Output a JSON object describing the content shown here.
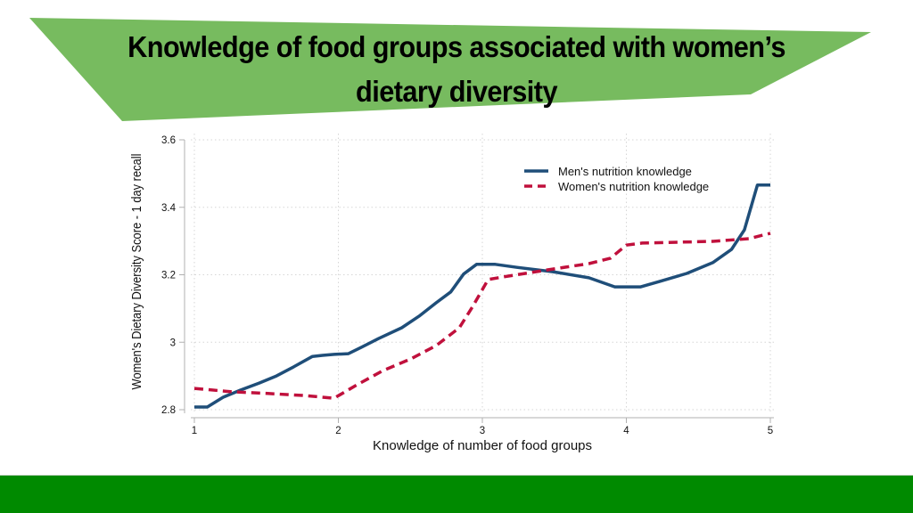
{
  "slide": {
    "title_line1": "Knowledge of food groups associated with women’s",
    "title_line2": "dietary diversity",
    "banner_color": "#77bb5f",
    "footer_color": "#008a00"
  },
  "chart_data": {
    "type": "line",
    "title": "Knowledge of food groups associated with women’s dietary diversity",
    "xlabel": "Knowledge of number of food groups",
    "ylabel": "Women's Dietary Diversity Score - 1 day recall",
    "xlim": [
      1,
      5
    ],
    "ylim": [
      2.8,
      3.6
    ],
    "xticks": [
      1,
      2,
      3,
      4,
      5
    ],
    "xtick_labels": [
      "1",
      "2",
      "3",
      "4",
      "5"
    ],
    "yticks": [
      2.8,
      3.0,
      3.2,
      3.4,
      3.6
    ],
    "ytick_labels": [
      "2.8",
      "3",
      "3.2",
      "3.4",
      "3.6"
    ],
    "grid": true,
    "legend_position": "top-right",
    "series": [
      {
        "name": "Men's nutrition knowledge",
        "color": "#1f4e79",
        "style": "solid",
        "x": [
          1.0,
          1.09,
          1.2,
          1.32,
          1.45,
          1.57,
          1.69,
          1.82,
          1.89,
          1.97,
          2.07,
          2.16,
          2.28,
          2.44,
          2.56,
          2.68,
          2.78,
          2.87,
          2.96,
          3.09,
          3.24,
          3.49,
          3.74,
          3.92,
          4.1,
          4.23,
          4.42,
          4.6,
          4.73,
          4.82,
          4.91,
          5.0
        ],
        "y": [
          2.808,
          2.808,
          2.837,
          2.858,
          2.879,
          2.9,
          2.927,
          2.958,
          2.961,
          2.964,
          2.966,
          2.985,
          3.011,
          3.043,
          3.077,
          3.117,
          3.149,
          3.202,
          3.231,
          3.231,
          3.222,
          3.209,
          3.191,
          3.164,
          3.164,
          3.18,
          3.204,
          3.236,
          3.275,
          3.333,
          3.466,
          3.466
        ]
      },
      {
        "name": "Women's nutrition knowledge",
        "color": "#c0103c",
        "style": "dashed",
        "x": [
          1.0,
          1.26,
          1.51,
          1.76,
          1.97,
          2.13,
          2.31,
          2.5,
          2.68,
          2.84,
          2.93,
          3.04,
          3.18,
          3.49,
          3.74,
          3.89,
          4.0,
          4.11,
          4.6,
          4.85,
          5.0
        ],
        "y": [
          2.863,
          2.853,
          2.848,
          2.842,
          2.834,
          2.874,
          2.916,
          2.95,
          2.99,
          3.043,
          3.104,
          3.186,
          3.196,
          3.217,
          3.233,
          3.249,
          3.288,
          3.294,
          3.299,
          3.307,
          3.323
        ]
      }
    ]
  }
}
